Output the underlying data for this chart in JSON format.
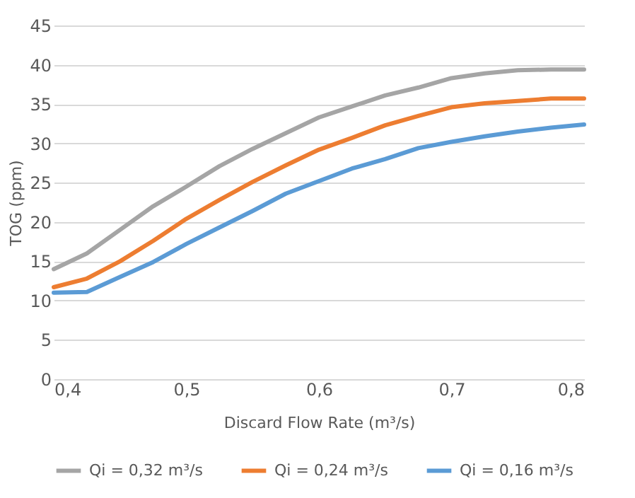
{
  "chart_data": {
    "type": "line",
    "xlabel": "Discard Flow Rate (m³/s)",
    "ylabel": "TOG (ppm)",
    "x": [
      0.4,
      0.425,
      0.45,
      0.475,
      0.5,
      0.525,
      0.55,
      0.575,
      0.6,
      0.625,
      0.65,
      0.675,
      0.7,
      0.725,
      0.75,
      0.775,
      0.8
    ],
    "series": [
      {
        "name": "Qi = 0,32 m³/s",
        "color": "#a5a5a5",
        "values": [
          14.0,
          16.0,
          19.0,
          22.0,
          24.5,
          27.1,
          29.3,
          31.3,
          33.3,
          34.7,
          36.1,
          37.1,
          38.3,
          38.9,
          39.3,
          39.4,
          39.4
        ]
      },
      {
        "name": "Qi = 0,24 m³/s",
        "color": "#ed7d31",
        "values": [
          11.7,
          12.8,
          15.0,
          17.6,
          20.4,
          22.8,
          25.1,
          27.2,
          29.2,
          30.7,
          32.3,
          33.5,
          34.6,
          35.1,
          35.4,
          35.7,
          35.7
        ]
      },
      {
        "name": "Qi = 0,16 m³/s",
        "color": "#5b9bd5",
        "values": [
          11.0,
          11.1,
          13.0,
          14.9,
          17.2,
          19.3,
          21.4,
          23.6,
          25.2,
          26.8,
          28.0,
          29.4,
          30.2,
          30.9,
          31.5,
          32.0,
          32.4
        ]
      }
    ],
    "xlim": [
      0.4,
      0.8
    ],
    "xticks": [
      {
        "value": 0.4,
        "label": "0,4"
      },
      {
        "value": 0.5,
        "label": "0,5"
      },
      {
        "value": 0.6,
        "label": "0,6"
      },
      {
        "value": 0.7,
        "label": "0,7"
      },
      {
        "value": 0.8,
        "label": "0,8"
      }
    ],
    "ylim": [
      0,
      45
    ],
    "yticks": [
      0,
      5,
      10,
      15,
      20,
      25,
      30,
      35,
      40,
      45
    ],
    "grid": "y",
    "legend": "bottom",
    "marker": "none",
    "line_style": "solid"
  }
}
